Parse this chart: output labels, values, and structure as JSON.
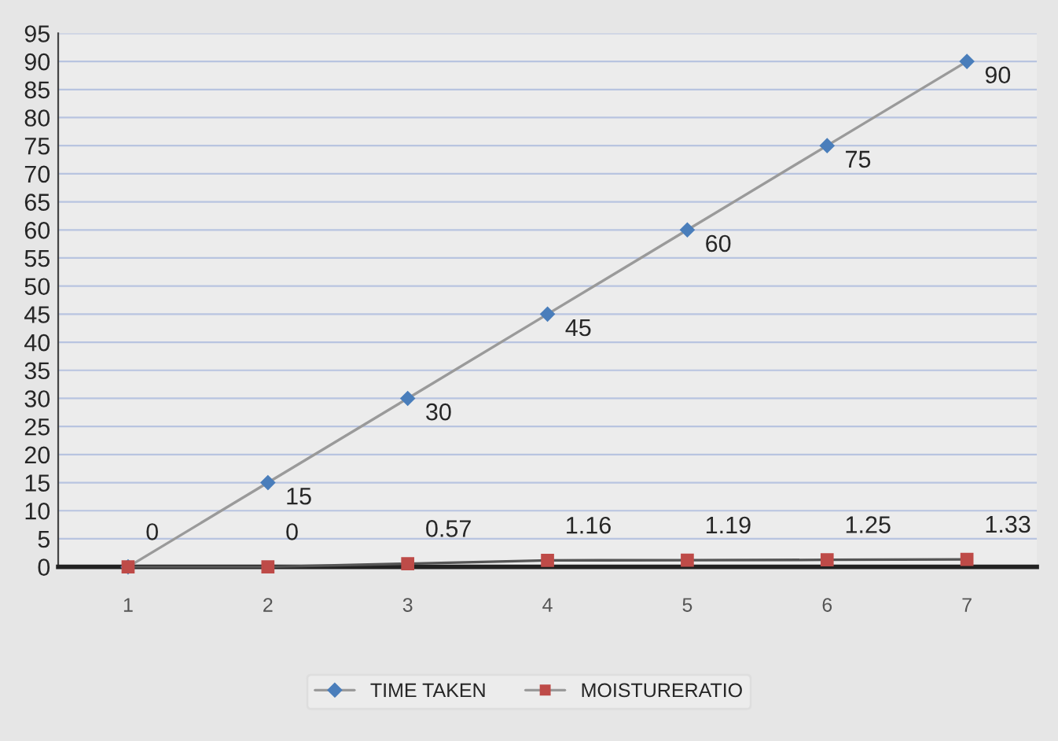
{
  "chart_data": {
    "type": "line",
    "categories": [
      "1",
      "2",
      "3",
      "4",
      "5",
      "6",
      "7"
    ],
    "series": [
      {
        "name": "TIME TAKEN",
        "color": "#4a7ebb",
        "marker": "diamond",
        "values": [
          0,
          15,
          30,
          45,
          60,
          75,
          90
        ],
        "value_labels": [
          null,
          "15",
          "30",
          "45",
          "60",
          "75",
          "90"
        ]
      },
      {
        "name": "MOISTURERATIO",
        "color": "#be4b48",
        "marker": "square",
        "values": [
          0,
          0,
          0.57,
          1.16,
          1.19,
          1.25,
          1.33
        ],
        "value_labels": [
          "0",
          "0",
          "0.57",
          "1.16",
          "1.19",
          "1.25",
          "1.33"
        ]
      }
    ],
    "ylim": [
      0,
      95
    ],
    "yticks": [
      0,
      5,
      10,
      15,
      20,
      25,
      30,
      35,
      40,
      45,
      50,
      55,
      60,
      65,
      70,
      75,
      80,
      85,
      90,
      95
    ],
    "grid": "y",
    "legend": "bottom"
  }
}
